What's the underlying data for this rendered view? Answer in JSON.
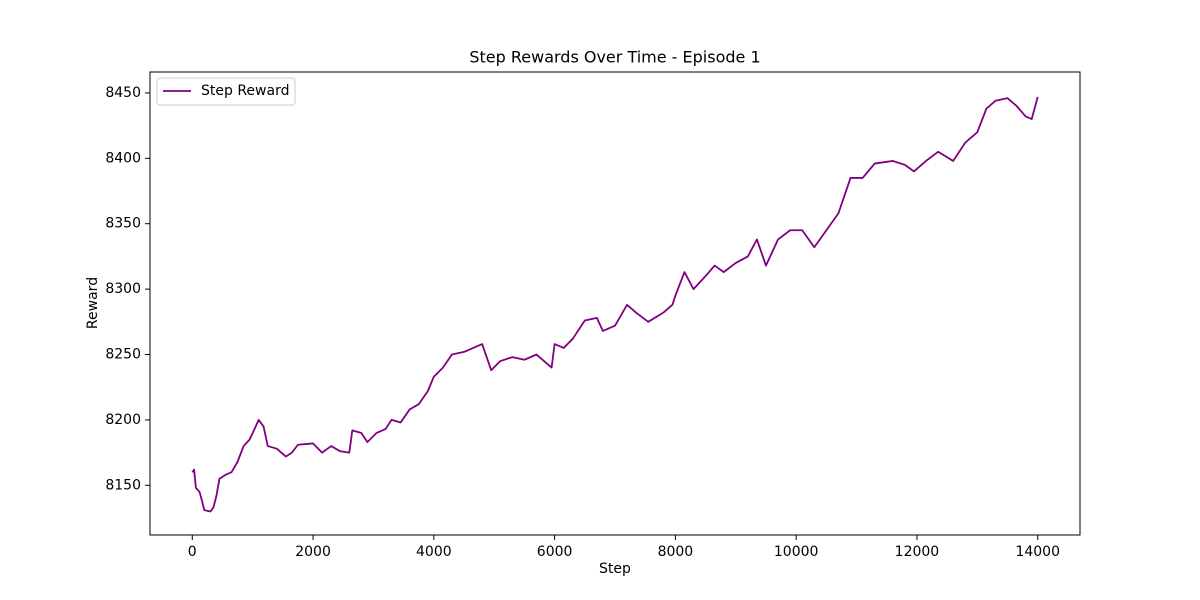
{
  "chart_data": {
    "type": "line",
    "title": "Step Rewards Over Time - Episode 1",
    "x_label": "Step",
    "y_label": "Reward",
    "x": [
      0,
      30,
      60,
      120,
      150,
      200,
      300,
      350,
      400,
      450,
      550,
      650,
      750,
      850,
      950,
      1050,
      1100,
      1180,
      1250,
      1400,
      1550,
      1650,
      1750,
      2000,
      2150,
      2300,
      2450,
      2600,
      2650,
      2800,
      2900,
      3050,
      3200,
      3300,
      3450,
      3600,
      3750,
      3900,
      4000,
      4150,
      4300,
      4500,
      4800,
      4950,
      5100,
      5300,
      5500,
      5700,
      5950,
      6000,
      6150,
      6300,
      6500,
      6700,
      6800,
      7000,
      7200,
      7350,
      7550,
      7800,
      7950,
      8000,
      8150,
      8300,
      8500,
      8650,
      8800,
      9000,
      9200,
      9350,
      9500,
      9700,
      9900,
      10100,
      10300,
      10500,
      10700,
      10900,
      11100,
      11300,
      11600,
      11800,
      11950,
      12150,
      12350,
      12600,
      12800,
      13000,
      13150,
      13300,
      13500,
      13650,
      13800,
      13900,
      14000
    ],
    "series": [
      {
        "name": "Step Reward",
        "color": "#800080",
        "values": [
          8160,
          8162,
          8148,
          8145,
          8140,
          8131,
          8130,
          8133,
          8142,
          8155,
          8158,
          8160,
          8168,
          8180,
          8185,
          8195,
          8200,
          8195,
          8180,
          8178,
          8172,
          8175,
          8181,
          8182,
          8175,
          8180,
          8176,
          8175,
          8192,
          8190,
          8183,
          8190,
          8193,
          8200,
          8198,
          8208,
          8212,
          8222,
          8233,
          8240,
          8250,
          8252,
          8258,
          8238,
          8245,
          8248,
          8246,
          8250,
          8240,
          8258,
          8255,
          8262,
          8276,
          8278,
          8268,
          8272,
          8288,
          8282,
          8275,
          8282,
          8288,
          8295,
          8313,
          8300,
          8310,
          8318,
          8313,
          8320,
          8325,
          8338,
          8318,
          8338,
          8345,
          8345,
          8332,
          8345,
          8358,
          8385,
          8385,
          8396,
          8398,
          8395,
          8390,
          8398,
          8405,
          8398,
          8412,
          8420,
          8438,
          8444,
          8446,
          8440,
          8432,
          8430,
          8447
        ]
      }
    ],
    "xlim": [
      -700,
      14700
    ],
    "ylim": [
      8112,
      8466
    ],
    "xticks": [
      0,
      2000,
      4000,
      6000,
      8000,
      10000,
      12000,
      14000
    ],
    "yticks": [
      8150,
      8200,
      8250,
      8300,
      8350,
      8400,
      8450
    ],
    "legend": "upper left"
  }
}
